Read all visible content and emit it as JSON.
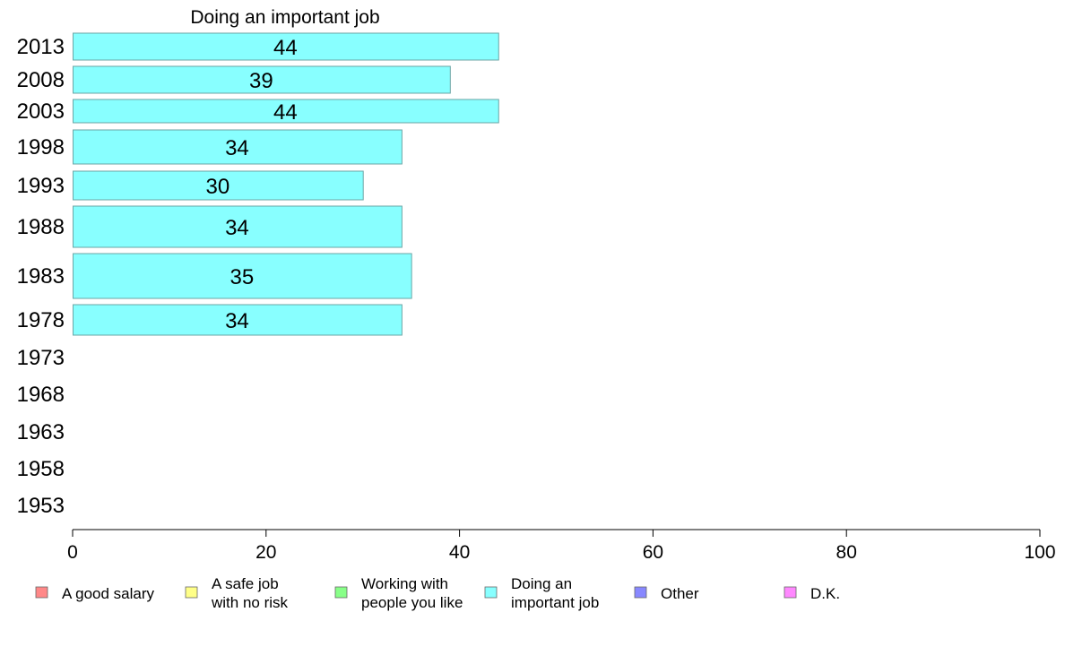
{
  "chart_data": {
    "type": "bar",
    "orientation": "horizontal",
    "title": "Doing an important job",
    "xlabel": "",
    "ylabel": "",
    "xlim": [
      0,
      100
    ],
    "x_ticks": [
      0,
      20,
      40,
      60,
      80,
      100
    ],
    "categories": [
      "2013",
      "2008",
      "2003",
      "1998",
      "1993",
      "1988",
      "1983",
      "1978",
      "1973",
      "1968",
      "1963",
      "1958",
      "1953"
    ],
    "series": [
      {
        "name": "Doing an important job",
        "color": "#88ffff",
        "values": [
          44,
          39,
          44,
          34,
          30,
          34,
          35,
          34,
          null,
          null,
          null,
          null,
          null
        ],
        "labels": [
          "44",
          "39",
          "44",
          "34",
          "30",
          "34",
          "35",
          "34",
          "",
          "",
          "",
          "",
          ""
        ]
      }
    ],
    "legend": {
      "position": "bottom",
      "entries": [
        {
          "lines": [
            "A good salary"
          ],
          "color": "#ff8888"
        },
        {
          "lines": [
            "A safe job",
            "with no risk"
          ],
          "color": "#ffff88"
        },
        {
          "lines": [
            "Working with",
            "people you like"
          ],
          "color": "#88ff88"
        },
        {
          "lines": [
            "Doing an",
            "important job"
          ],
          "color": "#88ffff"
        },
        {
          "lines": [
            "Other"
          ],
          "color": "#8888ff"
        },
        {
          "lines": [
            "D.K."
          ],
          "color": "#ff88ff"
        }
      ]
    },
    "grid": false
  }
}
